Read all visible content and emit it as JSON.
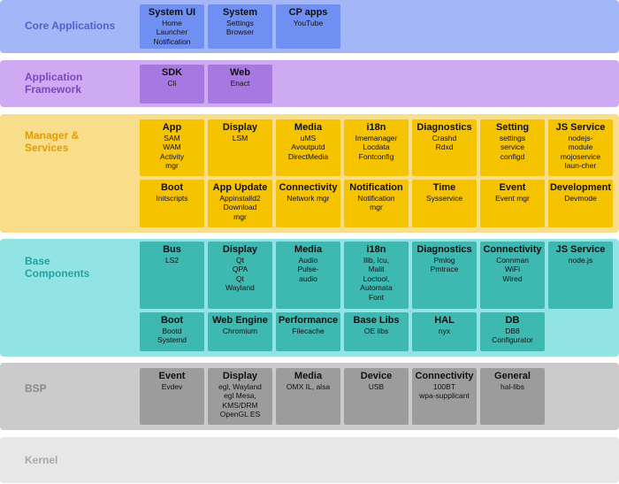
{
  "layers": [
    {
      "label": [
        "Core Applications"
      ],
      "rows": [
        [
          {
            "title": "System UI",
            "lines": [
              "Home",
              "Launcher",
              "Notification"
            ]
          },
          {
            "title": "System",
            "lines": [
              "Settings",
              "Browser"
            ]
          },
          {
            "title": "CP apps",
            "lines": [
              "YouTube"
            ]
          }
        ]
      ]
    },
    {
      "label": [
        "Application",
        "Framework"
      ],
      "rows": [
        [
          {
            "title": "SDK",
            "lines": [
              "Cli"
            ]
          },
          {
            "title": "Web",
            "lines": [
              "Enact"
            ]
          }
        ]
      ]
    },
    {
      "label": [
        "Manager &",
        "Services"
      ],
      "rows": [
        [
          {
            "title": "App",
            "lines": [
              "SAM",
              "WAM",
              "Activity",
              "mgr"
            ]
          },
          {
            "title": "Display",
            "lines": [
              "LSM"
            ]
          },
          {
            "title": "Media",
            "lines": [
              "uMS",
              "Avoutputd",
              "DirectMedia"
            ]
          },
          {
            "title": "i18n",
            "lines": [
              "Imemanager",
              "Locdata",
              "Fontconfig"
            ]
          },
          {
            "title": "Diagnostics",
            "lines": [
              "Crashd",
              "Rdxd"
            ]
          },
          {
            "title": "Setting",
            "lines": [
              "settings",
              "service",
              "configd"
            ]
          },
          {
            "title": "JS Service",
            "lines": [
              "nodejs-",
              "module",
              "mojoservice",
              "laun-cher"
            ]
          }
        ],
        [
          {
            "title": "Boot",
            "lines": [
              "Initscripts"
            ]
          },
          {
            "title": "App Update",
            "lines": [
              "Appinstalld2",
              "Download",
              "mgr"
            ]
          },
          {
            "title": "Connectivity",
            "lines": [
              "Network mgr"
            ]
          },
          {
            "title": "Notification",
            "lines": [
              "Notification",
              "mgr"
            ]
          },
          {
            "title": "Time",
            "lines": [
              "Sysservice"
            ]
          },
          {
            "title": "Event",
            "lines": [
              "Event mgr"
            ]
          },
          {
            "title": "Development",
            "lines": [
              "Devmode"
            ]
          }
        ]
      ]
    },
    {
      "label": [
        "Base",
        "Components"
      ],
      "rows": [
        [
          {
            "title": "Bus",
            "lines": [
              "LS2"
            ]
          },
          {
            "title": "Display",
            "lines": [
              "Qt",
              "QPA",
              "Qt",
              "Wayland"
            ]
          },
          {
            "title": "Media",
            "lines": [
              "Audio",
              "Pulse-",
              "audio"
            ]
          },
          {
            "title": "i18n",
            "lines": [
              "Ilib, Icu,",
              "Malit",
              "Loctool,",
              "Automata",
              "Font"
            ]
          },
          {
            "title": "Diagnostics",
            "lines": [
              "Pmlog",
              "Pmtrace"
            ]
          },
          {
            "title": "Connectivity",
            "lines": [
              "Connman",
              "WiFi",
              "Wired"
            ]
          },
          {
            "title": "JS Service",
            "lines": [
              "node.js"
            ]
          }
        ],
        [
          {
            "title": "Boot",
            "lines": [
              "Bootd",
              "Systemd"
            ]
          },
          {
            "title": "Web Engine",
            "lines": [
              "Chromium"
            ]
          },
          {
            "title": "Performance",
            "lines": [
              "Filecache"
            ]
          },
          {
            "title": "Base Libs",
            "lines": [
              "OE libs"
            ]
          },
          {
            "title": "HAL",
            "lines": [
              "nyx"
            ]
          },
          {
            "title": "DB",
            "lines": [
              "DB8",
              "Configurator"
            ]
          }
        ]
      ]
    },
    {
      "label": [
        "BSP"
      ],
      "rows": [
        [
          {
            "title": "Event",
            "lines": [
              "Evdev"
            ]
          },
          {
            "title": "Display",
            "lines": [
              "egl, Wayland",
              "egl Mesa,",
              "KMS/DRM",
              "OpenGL ES"
            ]
          },
          {
            "title": "Media",
            "lines": [
              "OMX IL, alsa"
            ]
          },
          {
            "title": "Device",
            "lines": [
              "USB"
            ]
          },
          {
            "title": "Connectivity",
            "lines": [
              "100BT",
              "wpa-supplicant"
            ]
          },
          {
            "title": "General",
            "lines": [
              "hal-libs"
            ]
          }
        ]
      ]
    },
    {
      "label": [
        "Kernel"
      ],
      "rows": []
    }
  ]
}
